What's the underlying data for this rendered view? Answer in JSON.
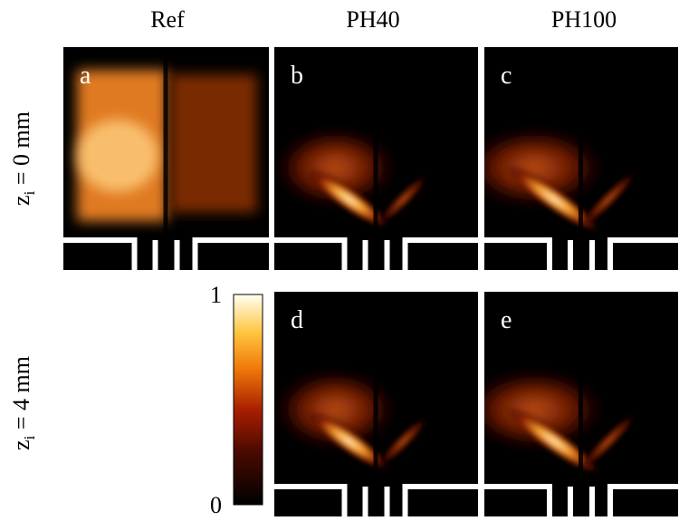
{
  "columns": [
    "Ref",
    "PH40",
    "PH100"
  ],
  "row_labels": [
    {
      "symbol": "z",
      "subscript": "i",
      "text": " = 0 mm"
    },
    {
      "symbol": "z",
      "subscript": "i",
      "text": " = 4 mm"
    }
  ],
  "panels": [
    "a",
    "b",
    "c",
    "d",
    "e"
  ],
  "colorbar": {
    "ticks": [
      1,
      0
    ]
  }
}
